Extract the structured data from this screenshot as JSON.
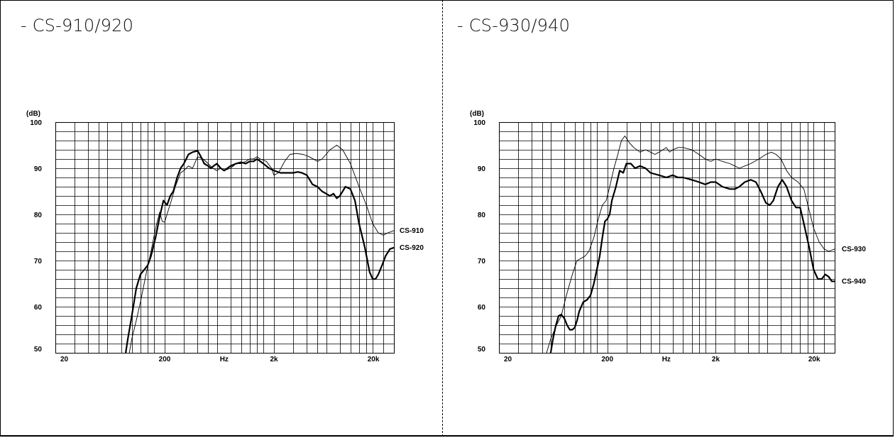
{
  "panels": [
    {
      "title": "- CS-910/920"
    },
    {
      "title": "- CS-930/940"
    }
  ],
  "chart_data": [
    {
      "type": "line",
      "title": "- CS-910/920",
      "ylabel": "(dB)",
      "xlabel": "Hz",
      "xscale": "log",
      "xlim": [
        20,
        25000
      ],
      "ylim": [
        50,
        100
      ],
      "x_ticks": [
        "20",
        "200",
        "Hz",
        "2k",
        "20k"
      ],
      "y_ticks": [
        "100",
        "90",
        "80",
        "70",
        "60",
        "50"
      ],
      "grid": true,
      "series": [
        {
          "name": "CS-910",
          "width": "thin",
          "points": [
            [
              95,
              50
            ],
            [
              100,
              53
            ],
            [
              110,
              57
            ],
            [
              120,
              61
            ],
            [
              135,
              67
            ],
            [
              150,
              72
            ],
            [
              165,
              77
            ],
            [
              180,
              80.5
            ],
            [
              190,
              78.5
            ],
            [
              200,
              78.3
            ],
            [
              210,
              80
            ],
            [
              230,
              83
            ],
            [
              250,
              86
            ],
            [
              280,
              89
            ],
            [
              300,
              89.5
            ],
            [
              330,
              90.5
            ],
            [
              360,
              90
            ],
            [
              400,
              92.5
            ],
            [
              450,
              92
            ],
            [
              500,
              91
            ],
            [
              550,
              90
            ],
            [
              600,
              89.5
            ],
            [
              650,
              90
            ],
            [
              700,
              89.5
            ],
            [
              800,
              90
            ],
            [
              900,
              91
            ],
            [
              1000,
              91
            ],
            [
              1100,
              91.5
            ],
            [
              1200,
              92
            ],
            [
              1300,
              92
            ],
            [
              1400,
              92.5
            ],
            [
              1500,
              92
            ],
            [
              1700,
              91.5
            ],
            [
              1900,
              90
            ],
            [
              2000,
              88.5
            ],
            [
              2200,
              89
            ],
            [
              2500,
              91.5
            ],
            [
              2800,
              93
            ],
            [
              3200,
              93.2
            ],
            [
              3700,
              93
            ],
            [
              4200,
              92.5
            ],
            [
              5000,
              91.5
            ],
            [
              5500,
              92
            ],
            [
              6500,
              94
            ],
            [
              7500,
              95
            ],
            [
              8500,
              94
            ],
            [
              10000,
              91
            ],
            [
              12000,
              86
            ],
            [
              14000,
              82
            ],
            [
              16000,
              78
            ],
            [
              18000,
              76
            ],
            [
              20000,
              75.5
            ],
            [
              22000,
              76
            ],
            [
              25000,
              76.5
            ]
          ]
        },
        {
          "name": "CS-920",
          "width": "thick",
          "points": [
            [
              88,
              50
            ],
            [
              92,
              53
            ],
            [
              100,
              58
            ],
            [
              110,
              64
            ],
            [
              120,
              67
            ],
            [
              130,
              68
            ],
            [
              140,
              69
            ],
            [
              150,
              71
            ],
            [
              165,
              75
            ],
            [
              180,
              79.5
            ],
            [
              195,
              83
            ],
            [
              210,
              82
            ],
            [
              225,
              84
            ],
            [
              240,
              85
            ],
            [
              260,
              88
            ],
            [
              280,
              90
            ],
            [
              300,
              91
            ],
            [
              330,
              93
            ],
            [
              360,
              93.5
            ],
            [
              400,
              93.8
            ],
            [
              430,
              92.5
            ],
            [
              460,
              91
            ],
            [
              500,
              90.5
            ],
            [
              530,
              90
            ],
            [
              560,
              90.5
            ],
            [
              600,
              91
            ],
            [
              650,
              90
            ],
            [
              700,
              89.5
            ],
            [
              750,
              90
            ],
            [
              800,
              90.5
            ],
            [
              900,
              91
            ],
            [
              1000,
              91.3
            ],
            [
              1100,
              91
            ],
            [
              1200,
              91.5
            ],
            [
              1300,
              91.5
            ],
            [
              1400,
              92
            ],
            [
              1500,
              91.5
            ],
            [
              1600,
              91
            ],
            [
              1700,
              90.5
            ],
            [
              1800,
              90
            ],
            [
              2000,
              89.5
            ],
            [
              2300,
              89
            ],
            [
              2700,
              89
            ],
            [
              3000,
              89
            ],
            [
              3300,
              89.2
            ],
            [
              3600,
              89
            ],
            [
              4000,
              88.5
            ],
            [
              4500,
              86.5
            ],
            [
              5000,
              86
            ],
            [
              5500,
              85
            ],
            [
              6000,
              84.5
            ],
            [
              6500,
              84
            ],
            [
              7000,
              84.5
            ],
            [
              7500,
              83.5
            ],
            [
              8000,
              84
            ],
            [
              9000,
              86
            ],
            [
              10000,
              85.5
            ],
            [
              11000,
              83
            ],
            [
              12000,
              78
            ],
            [
              13500,
              73
            ],
            [
              15000,
              67.5
            ],
            [
              16000,
              66
            ],
            [
              17000,
              66
            ],
            [
              18000,
              67
            ],
            [
              19500,
              69
            ],
            [
              21000,
              71
            ],
            [
              23000,
              72.5
            ],
            [
              25000,
              72.8
            ]
          ]
        }
      ],
      "series_labels": [
        "CS-910",
        "CS-920"
      ]
    },
    {
      "type": "line",
      "title": "- CS-930/940",
      "ylabel": "(dB)",
      "xlabel": "Hz",
      "xscale": "log",
      "xlim": [
        20,
        25000
      ],
      "ylim": [
        50,
        100
      ],
      "x_ticks": [
        "20",
        "200",
        "Hz",
        "2k",
        "20k"
      ],
      "y_ticks": [
        "100",
        "90",
        "80",
        "70",
        "60",
        "50"
      ],
      "grid": true,
      "series": [
        {
          "name": "CS-930",
          "width": "thin",
          "points": [
            [
              55,
              50
            ],
            [
              60,
              53
            ],
            [
              68,
              56
            ],
            [
              75,
              58
            ],
            [
              85,
              63
            ],
            [
              95,
              67
            ],
            [
              105,
              70
            ],
            [
              115,
              70.5
            ],
            [
              125,
              71
            ],
            [
              135,
              72
            ],
            [
              150,
              75
            ],
            [
              165,
              79
            ],
            [
              180,
              82
            ],
            [
              195,
              83
            ],
            [
              210,
              86
            ],
            [
              230,
              90
            ],
            [
              250,
              93
            ],
            [
              270,
              96
            ],
            [
              290,
              97
            ],
            [
              320,
              95.5
            ],
            [
              350,
              94.5
            ],
            [
              400,
              93.5
            ],
            [
              450,
              94
            ],
            [
              500,
              93.5
            ],
            [
              550,
              93
            ],
            [
              600,
              93.5
            ],
            [
              650,
              94
            ],
            [
              700,
              94.5
            ],
            [
              750,
              93.5
            ],
            [
              800,
              94
            ],
            [
              900,
              94.5
            ],
            [
              1000,
              94.5
            ],
            [
              1200,
              94
            ],
            [
              1400,
              93
            ],
            [
              1600,
              92
            ],
            [
              1800,
              91.5
            ],
            [
              2000,
              92
            ],
            [
              2300,
              91.5
            ],
            [
              2700,
              91
            ],
            [
              3000,
              90.5
            ],
            [
              3300,
              90
            ],
            [
              3700,
              90.5
            ],
            [
              4200,
              91
            ],
            [
              5000,
              92
            ],
            [
              5800,
              93
            ],
            [
              6500,
              93.5
            ],
            [
              7200,
              93
            ],
            [
              8000,
              92
            ],
            [
              9000,
              89.5
            ],
            [
              10000,
              88
            ],
            [
              11500,
              87
            ],
            [
              13000,
              85.5
            ],
            [
              14500,
              81
            ],
            [
              16000,
              77
            ],
            [
              18000,
              74
            ],
            [
              20000,
              72.5
            ],
            [
              22000,
              72
            ],
            [
              25000,
              72.5
            ]
          ]
        },
        {
          "name": "CS-940",
          "width": "thick",
          "points": [
            [
              60,
              50
            ],
            [
              63,
              53
            ],
            [
              67,
              56
            ],
            [
              71,
              58
            ],
            [
              75,
              58.3
            ],
            [
              80,
              57.5
            ],
            [
              85,
              56
            ],
            [
              90,
              55
            ],
            [
              95,
              55
            ],
            [
              100,
              55.5
            ],
            [
              105,
              57
            ],
            [
              110,
              59
            ],
            [
              120,
              61
            ],
            [
              130,
              61.5
            ],
            [
              140,
              62.5
            ],
            [
              150,
              65
            ],
            [
              160,
              68
            ],
            [
              170,
              71
            ],
            [
              180,
              75
            ],
            [
              190,
              78.5
            ],
            [
              200,
              79
            ],
            [
              210,
              80
            ],
            [
              220,
              83
            ],
            [
              240,
              86
            ],
            [
              260,
              89.5
            ],
            [
              280,
              89
            ],
            [
              300,
              91
            ],
            [
              330,
              91
            ],
            [
              360,
              90
            ],
            [
              400,
              90.5
            ],
            [
              450,
              90
            ],
            [
              500,
              89
            ],
            [
              600,
              88.5
            ],
            [
              700,
              88
            ],
            [
              800,
              88.5
            ],
            [
              900,
              88
            ],
            [
              1000,
              88
            ],
            [
              1200,
              87.5
            ],
            [
              1400,
              87
            ],
            [
              1600,
              86.5
            ],
            [
              1800,
              87
            ],
            [
              2000,
              87
            ],
            [
              2300,
              86
            ],
            [
              2700,
              85.5
            ],
            [
              3000,
              85.5
            ],
            [
              3300,
              86
            ],
            [
              3700,
              87
            ],
            [
              4200,
              87.5
            ],
            [
              4700,
              87
            ],
            [
              5200,
              85
            ],
            [
              5800,
              82.5
            ],
            [
              6300,
              82
            ],
            [
              6800,
              83
            ],
            [
              7500,
              86
            ],
            [
              8200,
              87.5
            ],
            [
              9000,
              86
            ],
            [
              10000,
              83
            ],
            [
              11000,
              81.5
            ],
            [
              12000,
              81.5
            ],
            [
              13000,
              78
            ],
            [
              14500,
              73
            ],
            [
              16000,
              68
            ],
            [
              17500,
              66
            ],
            [
              19000,
              66
            ],
            [
              20500,
              67
            ],
            [
              22000,
              66.5
            ],
            [
              23500,
              65.5
            ],
            [
              25000,
              65.5
            ]
          ]
        }
      ],
      "series_labels": [
        "CS-930",
        "CS-940"
      ]
    }
  ]
}
